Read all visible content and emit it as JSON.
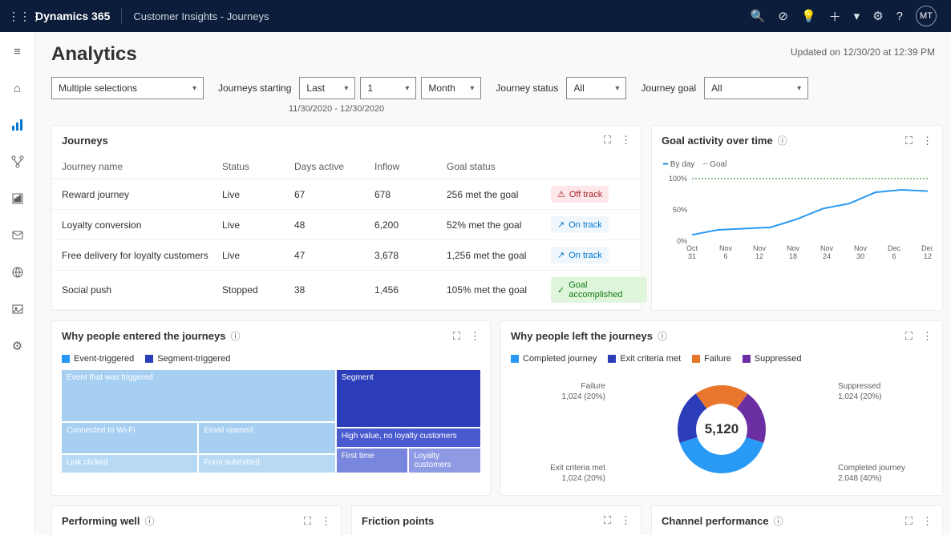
{
  "topbar": {
    "brand": "Dynamics 365",
    "product": "Customer Insights - Journeys",
    "avatar": "MT"
  },
  "page": {
    "title": "Analytics",
    "updated": "Updated on 12/30/20 at 12:39 PM"
  },
  "filters": {
    "multi": "Multiple selections",
    "journeys_starting_label": "Journeys starting",
    "last": "Last",
    "num": "1",
    "unit": "Month",
    "date_range": "11/30/2020 - 12/30/2020",
    "status_label": "Journey status",
    "status_val": "All",
    "goal_label": "Journey goal",
    "goal_val": "All"
  },
  "journeys_card": {
    "title": "Journeys",
    "cols": {
      "name": "Journey name",
      "status": "Status",
      "days": "Days active",
      "inflow": "Inflow",
      "goal": "Goal status"
    },
    "rows": [
      {
        "name": "Reward journey",
        "status": "Live",
        "days": "67",
        "inflow": "678",
        "goal": "256 met the goal",
        "badge": "Off track",
        "badge_class": "off",
        "badge_icon": "⚠"
      },
      {
        "name": "Loyalty conversion",
        "status": "Live",
        "days": "48",
        "inflow": "6,200",
        "goal": "52% met the goal",
        "badge": "On track",
        "badge_class": "on",
        "badge_icon": "↗"
      },
      {
        "name": "Free delivery for loyalty customers",
        "status": "Live",
        "days": "47",
        "inflow": "3,678",
        "goal": "1,256 met the goal",
        "badge": "On track",
        "badge_class": "on",
        "badge_icon": "↗"
      },
      {
        "name": "Social push",
        "status": "Stopped",
        "days": "38",
        "inflow": "1,456",
        "goal": "105% met the goal",
        "badge": "Goal accomplished",
        "badge_class": "done",
        "badge_icon": "✓"
      }
    ]
  },
  "goal_chart": {
    "title": "Goal activity over time",
    "legend_day": "By day",
    "legend_goal": "Goal",
    "y_labels": [
      "100%",
      "50%",
      "0%"
    ],
    "x_labels": [
      "Oct 31",
      "Nov 6",
      "Nov 12",
      "Nov 18",
      "Nov 24",
      "Nov 30",
      "Dec 6",
      "Dec 12"
    ],
    "y_values": [
      10,
      18,
      20,
      22,
      35,
      52,
      60,
      78,
      82,
      80
    ],
    "goal_line": 100,
    "line_color": "#2899f5",
    "goal_color": "#107c10"
  },
  "entered_card": {
    "title": "Why people entered the journeys",
    "legend": [
      {
        "label": "Event-triggered",
        "color": "#2899f5"
      },
      {
        "label": "Segment-triggered",
        "color": "#2b3db8"
      }
    ],
    "tiles_left": {
      "top": {
        "label": "Event that was triggered",
        "color": "#a6cff1"
      },
      "mid": [
        {
          "label": "Connected to Wi-Fi",
          "color": "#a6cff1"
        },
        {
          "label": "Email opened",
          "color": "#a6cff1"
        }
      ],
      "bot": [
        {
          "label": "Link clicked",
          "color": "#b7d9f4"
        },
        {
          "label": "Form submitted",
          "color": "#b7d9f4"
        }
      ]
    },
    "tiles_right": {
      "top": {
        "label": "Segment",
        "color": "#2b3db8"
      },
      "mid": {
        "label": "High value, no loyalty customers",
        "color": "#4a5bcf"
      },
      "bot": [
        {
          "label": "First time",
          "color": "#7886dd"
        },
        {
          "label": "Loyalty customers",
          "color": "#8e9ae4"
        }
      ]
    }
  },
  "left_card": {
    "title": "Why people left the journeys",
    "legend": [
      {
        "label": "Completed journey",
        "color": "#2899f5"
      },
      {
        "label": "Exit criteria met",
        "color": "#2b3db8"
      },
      {
        "label": "Failure",
        "color": "#e8762c"
      },
      {
        "label": "Suppressed",
        "color": "#6b2fa3"
      }
    ],
    "total": "5,120",
    "slices": [
      {
        "label": "Completed journey",
        "sub": "2,048 (40%)",
        "pct": 40,
        "color": "#2899f5"
      },
      {
        "label": "Exit criteria met",
        "sub": "1,024 (20%)",
        "pct": 20,
        "color": "#2b3db8"
      },
      {
        "label": "Failure",
        "sub": "1,024 (20%)",
        "pct": 20,
        "color": "#e8762c"
      },
      {
        "label": "Suppressed",
        "sub": "1,024 (20%)",
        "pct": 20,
        "color": "#6b2fa3"
      }
    ]
  },
  "bottom_cards": {
    "performing": "Performing well",
    "friction": "Friction points",
    "channel": "Channel performance"
  }
}
